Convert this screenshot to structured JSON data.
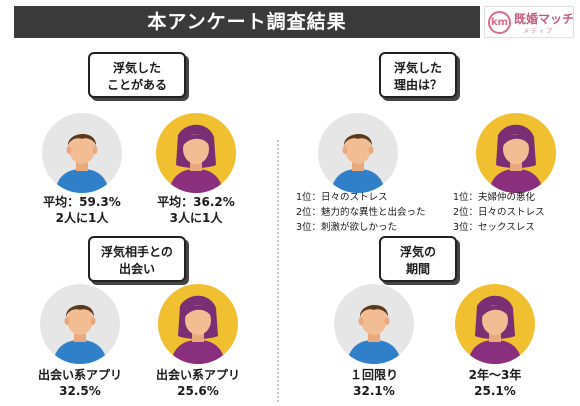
{
  "header": {
    "title": "本アンケート調査結果",
    "logo_text": "既婚マッチ",
    "logo_sub": "メディア",
    "logo_mark": "km"
  },
  "q1": {
    "line1": "浮気した",
    "line2": "ことがある",
    "male_line1": "平均：59.3%",
    "male_line2": "2人に1人",
    "female_line1": "平均：36.2%",
    "female_line2": "3人に1人"
  },
  "q2": {
    "line1": "浮気した",
    "line2": "理由は？",
    "male_ranks": [
      "1位：日々のストレス",
      "2位：魅力的な異性と出会った",
      "3位：刺激が欲しかった"
    ],
    "female_ranks": [
      "1位：夫婦仲の悪化",
      "2位：日々のストレス",
      "3位：セックスレス"
    ]
  },
  "q3": {
    "line1": "浮気相手との",
    "line2": "出会い",
    "male_line1": "出会い系アプリ",
    "male_line2": "32.5%",
    "female_line1": "出会い系アプリ",
    "female_line2": "25.6%"
  },
  "q4": {
    "line1": "浮気の",
    "line2": "期間",
    "male_line1": "１回限り",
    "male_line2": "32.1%",
    "female_line1": "2年〜3年",
    "female_line2": "25.1%"
  },
  "colors": {
    "title_bg": "#3a3a3a",
    "male_bg": "#e6e6e6",
    "female_bg": "#f0c030",
    "male_shirt": "#2f80c8",
    "female_shirt": "#8a2f7e",
    "skin": "#f3bd93",
    "male_hair": "#5a3a1e",
    "female_hair": "#7a2e74"
  }
}
